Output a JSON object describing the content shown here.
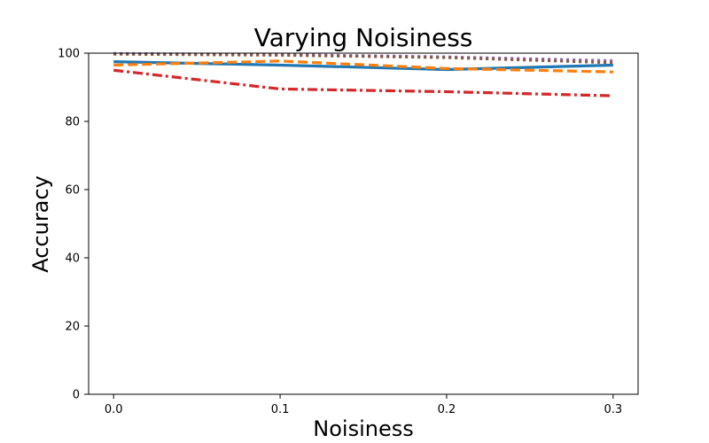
{
  "chart_data": {
    "type": "line",
    "title": "Varying Noisiness",
    "xlabel": "Noisiness",
    "ylabel": "Accuracy",
    "xlim": [
      -0.015,
      0.315
    ],
    "ylim": [
      0,
      100
    ],
    "xticks": [
      "0.0",
      "0.1",
      "0.2",
      "0.3"
    ],
    "yticks": [
      "0",
      "20",
      "40",
      "60",
      "80",
      "100"
    ],
    "x": [
      0.0,
      0.1,
      0.2,
      0.3
    ],
    "grid": false,
    "series": [
      {
        "values": [
          97.5,
          96.5,
          95.2,
          96.5
        ],
        "color": "#1f77b4",
        "dash": "solid"
      },
      {
        "values": [
          96.5,
          97.7,
          95.5,
          94.5
        ],
        "color": "#ff7f0e",
        "dash": "dashed"
      },
      {
        "values": [
          99.8,
          99.5,
          98.8,
          97.5
        ],
        "color": "#2ca02c",
        "dash": "dotted"
      },
      {
        "values": [
          95.0,
          89.5,
          88.7,
          87.5
        ],
        "color": "#d62728",
        "dash": "dashdot"
      },
      {
        "values": [
          99.9,
          99.6,
          98.9,
          97.8
        ],
        "color": "#9467bd",
        "dash": "dotted"
      },
      {
        "values": [
          99.7,
          99.4,
          98.7,
          97.2
        ],
        "color": "#8c564b",
        "dash": "dotted"
      }
    ]
  }
}
